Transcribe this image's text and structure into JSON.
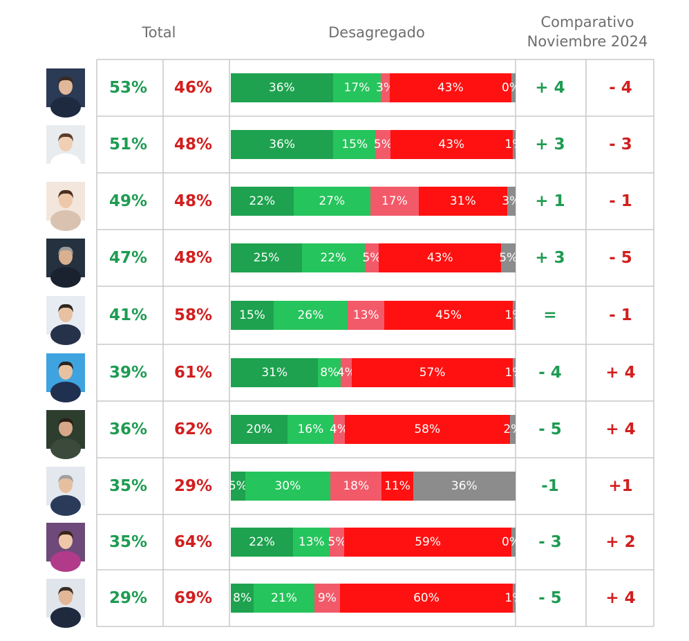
{
  "headers": {
    "total": "Total",
    "desagregado": "Desagregado",
    "comparativo_line1": "Comparativo",
    "comparativo_line2": "Noviembre 2024"
  },
  "colors": {
    "positive_text": "#1e9b52",
    "negative_text": "#d21e1e",
    "muy_positiva": "#1ea24f",
    "algo_positiva": "#26c45c",
    "algo_negativa": "#f25a6a",
    "muy_negativa": "#ff1111",
    "ns_nc": "#8c8c8c"
  },
  "chart_data": {
    "type": "bar",
    "stacked": true,
    "orientation": "horizontal",
    "title": "",
    "xlim": [
      0,
      100
    ],
    "series_order": [
      "muy_positiva",
      "algo_positiva",
      "algo_negativa",
      "muy_negativa",
      "ns_nc"
    ],
    "rows": [
      {
        "avatar": "person-1",
        "total_pos": "53%",
        "total_neg": "46%",
        "segments": [
          36,
          17,
          3,
          43,
          0
        ],
        "labels": [
          "36%",
          "17%",
          "3%",
          "43%",
          "0%"
        ],
        "comp_pos": "+ 4",
        "comp_neg": "- 4"
      },
      {
        "avatar": "person-2",
        "total_pos": "51%",
        "total_neg": "48%",
        "segments": [
          36,
          15,
          5,
          43,
          1
        ],
        "labels": [
          "36%",
          "15%",
          "5%",
          "43%",
          "1%"
        ],
        "comp_pos": "+ 3",
        "comp_neg": "- 3"
      },
      {
        "avatar": "person-3",
        "total_pos": "49%",
        "total_neg": "48%",
        "segments": [
          22,
          27,
          17,
          31,
          3
        ],
        "labels": [
          "22%",
          "27%",
          "17%",
          "31%",
          "3%"
        ],
        "comp_pos": "+ 1",
        "comp_neg": "- 1"
      },
      {
        "avatar": "person-4",
        "total_pos": "47%",
        "total_neg": "48%",
        "segments": [
          25,
          22,
          5,
          43,
          5
        ],
        "labels": [
          "25%",
          "22%",
          "5%",
          "43%",
          "5%"
        ],
        "comp_pos": "+ 3",
        "comp_neg": "- 5"
      },
      {
        "avatar": "person-5",
        "total_pos": "41%",
        "total_neg": "58%",
        "segments": [
          15,
          26,
          13,
          45,
          1
        ],
        "labels": [
          "15%",
          "26%",
          "13%",
          "45%",
          "1%"
        ],
        "comp_pos": "=",
        "comp_neg": "- 1"
      },
      {
        "avatar": "person-6",
        "total_pos": "39%",
        "total_neg": "61%",
        "segments": [
          31,
          8,
          4,
          57,
          1
        ],
        "labels": [
          "31%",
          "8%",
          "4%",
          "57%",
          "1%"
        ],
        "comp_pos": "- 4",
        "comp_neg": "+ 4"
      },
      {
        "avatar": "person-7",
        "total_pos": "36%",
        "total_neg": "62%",
        "segments": [
          20,
          16,
          4,
          58,
          2
        ],
        "labels": [
          "20%",
          "16%",
          "4%",
          "58%",
          "2%"
        ],
        "comp_pos": "- 5",
        "comp_neg": "+ 4"
      },
      {
        "avatar": "person-8",
        "total_pos": "35%",
        "total_neg": "29%",
        "segments": [
          5,
          30,
          18,
          11,
          36
        ],
        "labels": [
          "5%",
          "30%",
          "18%",
          "11%",
          "36%"
        ],
        "comp_pos": "-1",
        "comp_neg": "+1"
      },
      {
        "avatar": "person-9",
        "total_pos": "35%",
        "total_neg": "64%",
        "segments": [
          22,
          13,
          5,
          59,
          0
        ],
        "labels": [
          "22%",
          "13%",
          "5%",
          "59%",
          "0%"
        ],
        "comp_pos": "- 3",
        "comp_neg": "+ 2"
      },
      {
        "avatar": "person-10",
        "total_pos": "29%",
        "total_neg": "69%",
        "segments": [
          8,
          21,
          9,
          60,
          1
        ],
        "labels": [
          "8%",
          "21%",
          "9%",
          "60%",
          "1%"
        ],
        "comp_pos": "- 5",
        "comp_neg": "+ 4"
      }
    ]
  }
}
